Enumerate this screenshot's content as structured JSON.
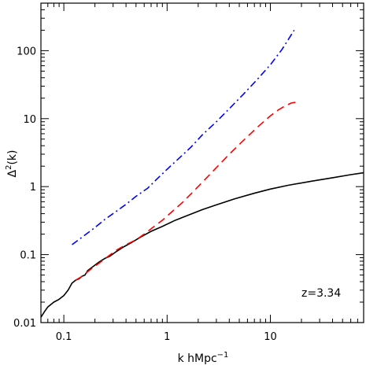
{
  "chart_data": {
    "type": "line",
    "xlabel": "k hMpc",
    "xlabel_superscript": "−1",
    "ylabel_main": "Δ",
    "ylabel_superscript": "2",
    "ylabel_suffix": "(k)",
    "xscale": "log",
    "yscale": "log",
    "xlim": [
      0.06,
      80
    ],
    "ylim": [
      0.01,
      500
    ],
    "x_ticks": [
      {
        "value": 0.1,
        "label": "0.1"
      },
      {
        "value": 1,
        "label": "1"
      },
      {
        "value": 10,
        "label": "10"
      }
    ],
    "y_ticks": [
      {
        "value": 0.01,
        "label": "0.01"
      },
      {
        "value": 0.1,
        "label": "0.1"
      },
      {
        "value": 1,
        "label": "1"
      },
      {
        "value": 10,
        "label": "10"
      },
      {
        "value": 100,
        "label": "100"
      }
    ],
    "grid": false,
    "legend": "none",
    "annotation": {
      "text": "z=3.34",
      "x": 20,
      "y": 0.024
    },
    "series": [
      {
        "style": "solid",
        "color": "#000000",
        "x": [
          0.06,
          0.065,
          0.07,
          0.08,
          0.09,
          0.1,
          0.11,
          0.12,
          0.13,
          0.14,
          0.15,
          0.16,
          0.17,
          0.18,
          0.2,
          0.22,
          0.25,
          0.28,
          0.32,
          0.38,
          0.45,
          0.55,
          0.7,
          0.9,
          1.2,
          1.6,
          2.2,
          3,
          4.5,
          7,
          10,
          15,
          25,
          40,
          60,
          80
        ],
        "y": [
          0.012,
          0.0145,
          0.017,
          0.02,
          0.022,
          0.025,
          0.03,
          0.038,
          0.042,
          0.044,
          0.048,
          0.05,
          0.058,
          0.062,
          0.07,
          0.078,
          0.088,
          0.095,
          0.11,
          0.13,
          0.15,
          0.18,
          0.22,
          0.26,
          0.32,
          0.38,
          0.46,
          0.54,
          0.66,
          0.8,
          0.92,
          1.05,
          1.2,
          1.35,
          1.5,
          1.6
        ]
      },
      {
        "style": "dashed",
        "color": "#ff0000",
        "x": [
          0.13,
          0.15,
          0.18,
          0.22,
          0.27,
          0.32,
          0.4,
          0.5,
          0.6,
          0.75,
          0.9,
          1.1,
          1.4,
          1.8,
          2.3,
          3,
          4,
          5.5,
          7.5,
          10,
          12,
          14,
          16,
          18
        ],
        "y": [
          0.042,
          0.048,
          0.06,
          0.075,
          0.095,
          0.115,
          0.14,
          0.165,
          0.2,
          0.26,
          0.32,
          0.42,
          0.58,
          0.85,
          1.25,
          1.9,
          3,
          4.8,
          7.5,
          11,
          13.5,
          15.5,
          17,
          17.5
        ]
      },
      {
        "style": "dashdot",
        "color": "#0000ff",
        "x": [
          0.12,
          0.15,
          0.2,
          0.25,
          0.32,
          0.4,
          0.5,
          0.65,
          0.8,
          1,
          1.3,
          1.7,
          2.2,
          3,
          4,
          5.5,
          7.5,
          10,
          13,
          17
        ],
        "y": [
          0.14,
          0.18,
          0.25,
          0.33,
          0.43,
          0.55,
          0.72,
          0.95,
          1.3,
          1.8,
          2.6,
          3.8,
          5.8,
          9,
          14,
          23,
          38,
          62,
          105,
          200
        ]
      }
    ]
  }
}
